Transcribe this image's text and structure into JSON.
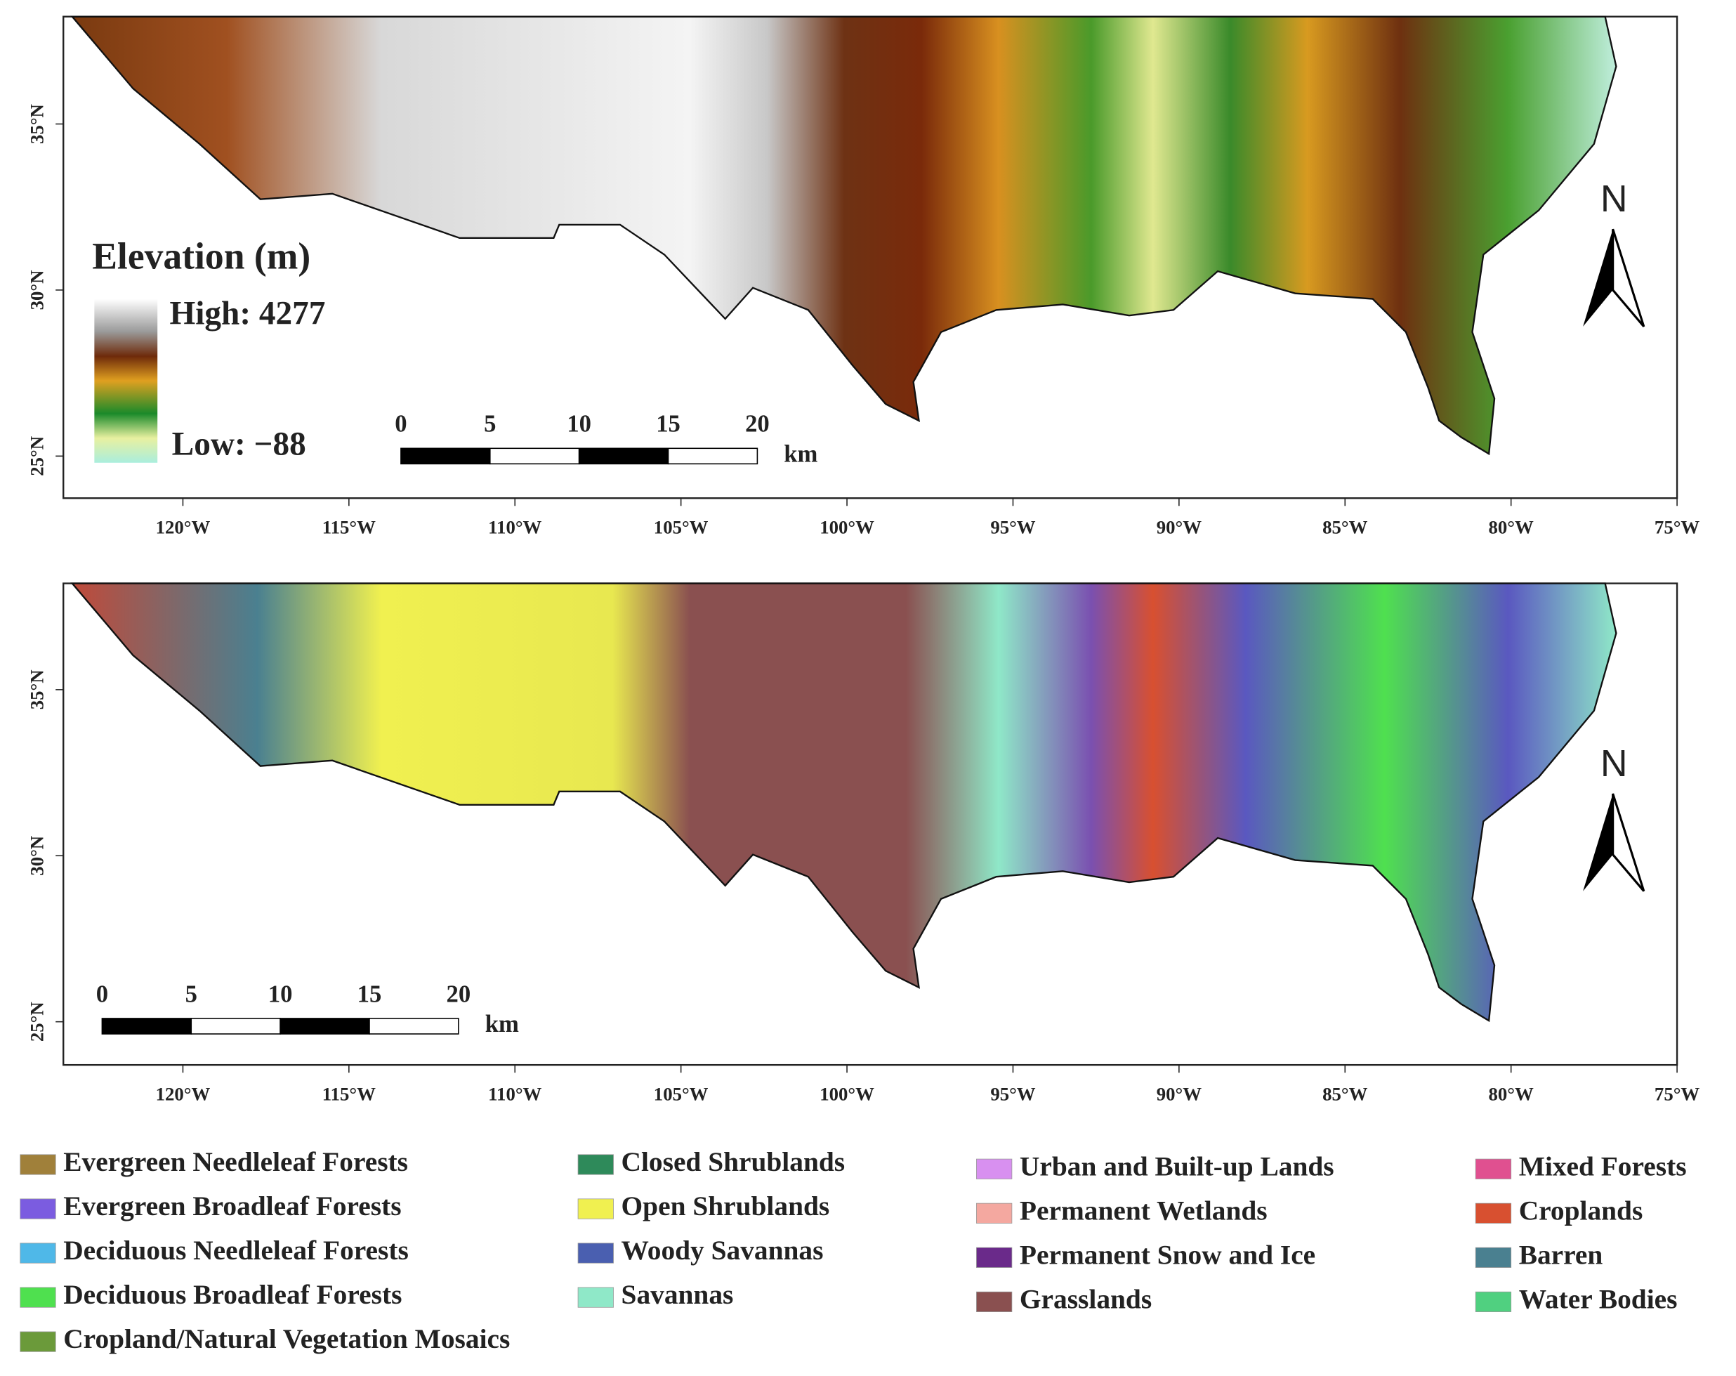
{
  "lon_ticks": [
    "120°W",
    "115°W",
    "110°W",
    "105°W",
    "100°W",
    "95°W",
    "90°W",
    "85°W",
    "80°W",
    "75°W"
  ],
  "lat_ticks": [
    "35°N",
    "30°N",
    "25°N"
  ],
  "elevation_legend": {
    "title": "Elevation (m)",
    "high": "High: 4277",
    "low": "Low: −88"
  },
  "scale_bar": {
    "labels": [
      "0",
      "5",
      "10",
      "15",
      "20"
    ],
    "unit": "km"
  },
  "north_label": "N",
  "land_cover_legend": [
    {
      "label": "Evergreen Needleleaf Forests",
      "color": "#a0803a"
    },
    {
      "label": "Evergreen Broadleaf Forests",
      "color": "#7b5ce0"
    },
    {
      "label": "Deciduous Needleleaf Forests",
      "color": "#4fb8e8"
    },
    {
      "label": "Deciduous Broadleaf Forests",
      "color": "#4fe04f"
    },
    {
      "label": "Cropland/Natural Vegetation Mosaics",
      "color": "#6b9a3a"
    },
    {
      "label": "Closed Shrublands",
      "color": "#2e8a5a"
    },
    {
      "label": "Open Shrublands",
      "color": "#f0f050"
    },
    {
      "label": "Woody Savannas",
      "color": "#4a5fb0"
    },
    {
      "label": "Savannas",
      "color": "#8fe8c8"
    },
    {
      "label": "Urban and Built-up Lands",
      "color": "#d890f0"
    },
    {
      "label": "Permanent Wetlands",
      "color": "#f4a8a0"
    },
    {
      "label": "Permanent Snow and Ice",
      "color": "#6a2a8a"
    },
    {
      "label": "Grasslands",
      "color": "#8a5050"
    },
    {
      "label": "Mixed Forests",
      "color": "#e05090"
    },
    {
      "label": "Croplands",
      "color": "#d85030"
    },
    {
      "label": "Barren",
      "color": "#4a8090"
    },
    {
      "label": "Water Bodies",
      "color": "#50d080"
    }
  ]
}
